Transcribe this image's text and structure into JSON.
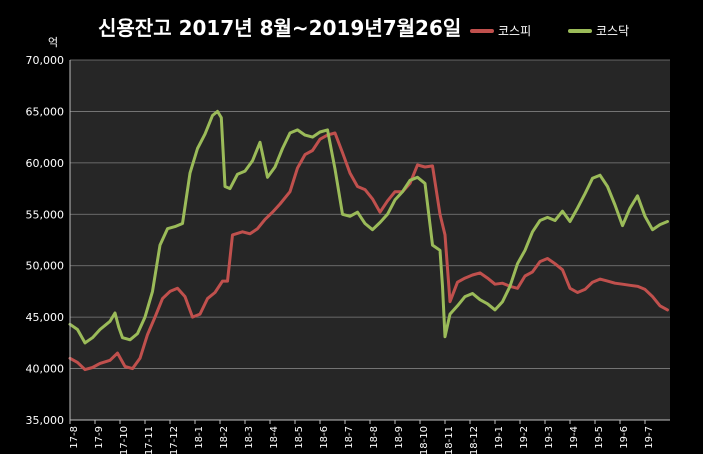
{
  "title": "신용잔고 2017년 8월~2019년7월26일",
  "unit_label": "억",
  "legend": [
    {
      "name": "코스피",
      "color": "#c0504d"
    },
    {
      "name": "코스닥",
      "color": "#9bbb59"
    }
  ],
  "chart_data": {
    "type": "line",
    "title": "신용잔고 2017년 8월~2019년7월26일",
    "xlabel": "",
    "ylabel": "억",
    "ylim": [
      35000,
      70000
    ],
    "yticks": [
      "35,000",
      "40,000",
      "45,000",
      "50,000",
      "55,000",
      "60,000",
      "65,000",
      "70,000"
    ],
    "categories": [
      "17-8",
      "17-9",
      "17-10",
      "17-11",
      "17-12",
      "18-1",
      "18-2",
      "18-3",
      "18-4",
      "18-5",
      "18-6",
      "18-7",
      "18-8",
      "18-9",
      "18-10",
      "18-11",
      "18-12",
      "19-1",
      "19-2",
      "19-3",
      "19-4",
      "19-5",
      "19-6",
      "19-7"
    ],
    "x_end": 24.0,
    "legend_position": "top-right",
    "grid": true,
    "series": [
      {
        "name": "코스피",
        "color": "#c0504d",
        "x": [
          0.0,
          0.3,
          0.6,
          0.9,
          1.2,
          1.6,
          1.9,
          2.2,
          2.5,
          2.8,
          3.1,
          3.4,
          3.7,
          4.0,
          4.3,
          4.6,
          4.9,
          5.2,
          5.5,
          5.8,
          6.1,
          6.3,
          6.5,
          6.9,
          7.2,
          7.5,
          7.8,
          8.1,
          8.4,
          8.8,
          9.1,
          9.4,
          9.7,
          10.0,
          10.3,
          10.6,
          10.9,
          11.2,
          11.5,
          11.8,
          12.1,
          12.4,
          12.7,
          13.0,
          13.3,
          13.6,
          13.9,
          14.2,
          14.5,
          14.8,
          15.0,
          15.2,
          15.5,
          15.8,
          16.1,
          16.4,
          16.7,
          17.0,
          17.3,
          17.6,
          17.9,
          18.2,
          18.5,
          18.8,
          19.1,
          19.4,
          19.7,
          20.0,
          20.3,
          20.6,
          20.9,
          21.2,
          21.5,
          21.8,
          22.1,
          22.4,
          22.7,
          23.0,
          23.3,
          23.6,
          23.9
        ],
        "values": [
          41000,
          40600,
          39900,
          40100,
          40500,
          40800,
          41500,
          40200,
          40000,
          41000,
          43300,
          45000,
          46800,
          47500,
          47800,
          47000,
          45000,
          45300,
          46800,
          47400,
          48500,
          48500,
          53000,
          53300,
          53100,
          53600,
          54500,
          55200,
          56000,
          57200,
          59500,
          60800,
          61200,
          62300,
          62700,
          62900,
          61000,
          59000,
          57700,
          57400,
          56500,
          55200,
          56300,
          57200,
          57200,
          58000,
          59800,
          59600,
          59700,
          55000,
          53000,
          46500,
          48400,
          48800,
          49100,
          49300,
          48800,
          48200,
          48300,
          48000,
          47800,
          49000,
          49400,
          50400,
          50700,
          50200,
          49600,
          47800,
          47400,
          47700,
          48400,
          48700,
          48500,
          48300,
          48200,
          48100,
          48000,
          47700,
          47000,
          46100,
          45700
        ]
      },
      {
        "name": "코스닥",
        "color": "#9bbb59",
        "x": [
          0.0,
          0.3,
          0.6,
          0.9,
          1.2,
          1.6,
          1.8,
          1.95,
          2.1,
          2.4,
          2.7,
          3.0,
          3.3,
          3.6,
          3.9,
          4.2,
          4.5,
          4.8,
          5.1,
          5.4,
          5.7,
          5.9,
          6.05,
          6.2,
          6.4,
          6.7,
          7.0,
          7.3,
          7.6,
          7.9,
          8.2,
          8.5,
          8.8,
          9.1,
          9.4,
          9.7,
          10.0,
          10.3,
          10.6,
          10.9,
          11.2,
          11.5,
          11.8,
          12.1,
          12.4,
          12.7,
          13.0,
          13.3,
          13.6,
          13.9,
          14.2,
          14.5,
          14.8,
          14.9,
          15.0,
          15.2,
          15.5,
          15.8,
          16.1,
          16.4,
          16.7,
          17.0,
          17.3,
          17.6,
          17.9,
          18.2,
          18.5,
          18.8,
          19.1,
          19.4,
          19.7,
          20.0,
          20.3,
          20.6,
          20.9,
          21.2,
          21.5,
          21.8,
          22.1,
          22.4,
          22.7,
          23.0,
          23.3,
          23.6,
          23.9
        ],
        "values": [
          44300,
          43800,
          42500,
          43000,
          43800,
          44600,
          45400,
          44000,
          43000,
          42800,
          43400,
          45000,
          47500,
          52000,
          53600,
          53800,
          54100,
          59000,
          61400,
          62800,
          64600,
          65000,
          64400,
          57700,
          57500,
          58900,
          59200,
          60200,
          62000,
          58600,
          59600,
          61400,
          62900,
          63200,
          62700,
          62500,
          63000,
          63200,
          59400,
          55000,
          54800,
          55200,
          54100,
          53500,
          54200,
          55000,
          56400,
          57200,
          58300,
          58600,
          58000,
          52000,
          51500,
          48000,
          43100,
          45300,
          46100,
          47000,
          47300,
          46700,
          46300,
          45700,
          46500,
          48000,
          50200,
          51500,
          53300,
          54400,
          54700,
          54400,
          55300,
          54300,
          55600,
          57000,
          58500,
          58800,
          57700,
          55900,
          53900,
          55600,
          56800,
          54800,
          53500,
          54000,
          54300
        ]
      }
    ]
  }
}
